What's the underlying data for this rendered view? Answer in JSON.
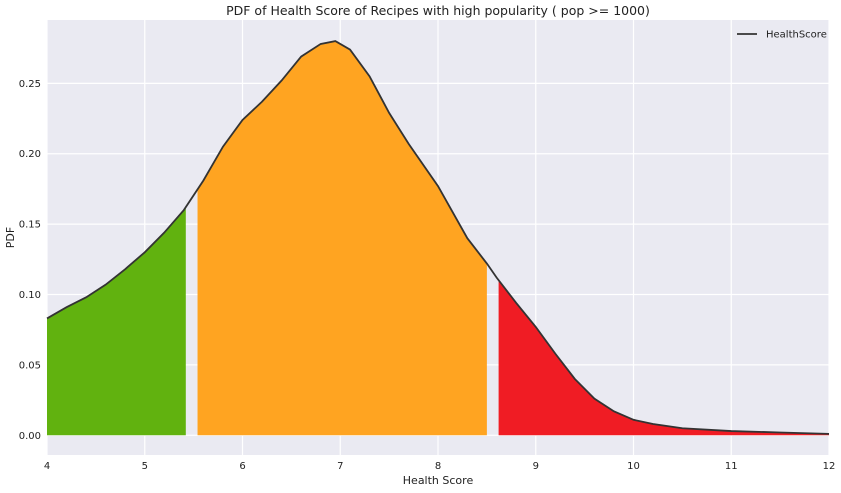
{
  "chart_data": {
    "type": "area",
    "title": "PDF of Health Score of Recipes with high popularity ( pop >= 1000)",
    "xlabel": "Health Score",
    "ylabel": "PDF",
    "xlim": [
      4,
      12
    ],
    "ylim": [
      -0.014,
      0.295
    ],
    "xticks": [
      "4",
      "5",
      "6",
      "7",
      "8",
      "9",
      "10",
      "11",
      "12"
    ],
    "yticks": [
      "0.00",
      "0.05",
      "0.10",
      "0.15",
      "0.20",
      "0.25"
    ],
    "grid": true,
    "legend": {
      "position": "top-right",
      "entries": [
        "HealthScore"
      ]
    },
    "series": [
      {
        "name": "HealthScore",
        "color": "#333333",
        "x": [
          4.0,
          4.2,
          4.4,
          4.6,
          4.8,
          5.0,
          5.2,
          5.4,
          5.6,
          5.8,
          6.0,
          6.2,
          6.4,
          6.6,
          6.8,
          6.95,
          7.1,
          7.3,
          7.5,
          7.7,
          8.0,
          8.3,
          8.5,
          8.6,
          8.8,
          9.0,
          9.2,
          9.4,
          9.6,
          9.8,
          10.0,
          10.2,
          10.5,
          11.0,
          11.5,
          12.0
        ],
        "y": [
          0.083,
          0.091,
          0.098,
          0.107,
          0.118,
          0.13,
          0.144,
          0.16,
          0.181,
          0.205,
          0.224,
          0.237,
          0.252,
          0.269,
          0.278,
          0.28,
          0.274,
          0.255,
          0.229,
          0.207,
          0.177,
          0.14,
          0.122,
          0.112,
          0.094,
          0.077,
          0.058,
          0.04,
          0.026,
          0.017,
          0.011,
          0.008,
          0.005,
          0.003,
          0.002,
          0.001
        ]
      }
    ],
    "regions": [
      {
        "x_start": 4.0,
        "x_end": 5.42,
        "color": "#61b20f"
      },
      {
        "x_start": 5.54,
        "x_end": 8.5,
        "color": "#ffa421"
      },
      {
        "x_start": 8.62,
        "x_end": 12.0,
        "color": "#f01c24"
      }
    ],
    "background": "#eaeaf2"
  }
}
